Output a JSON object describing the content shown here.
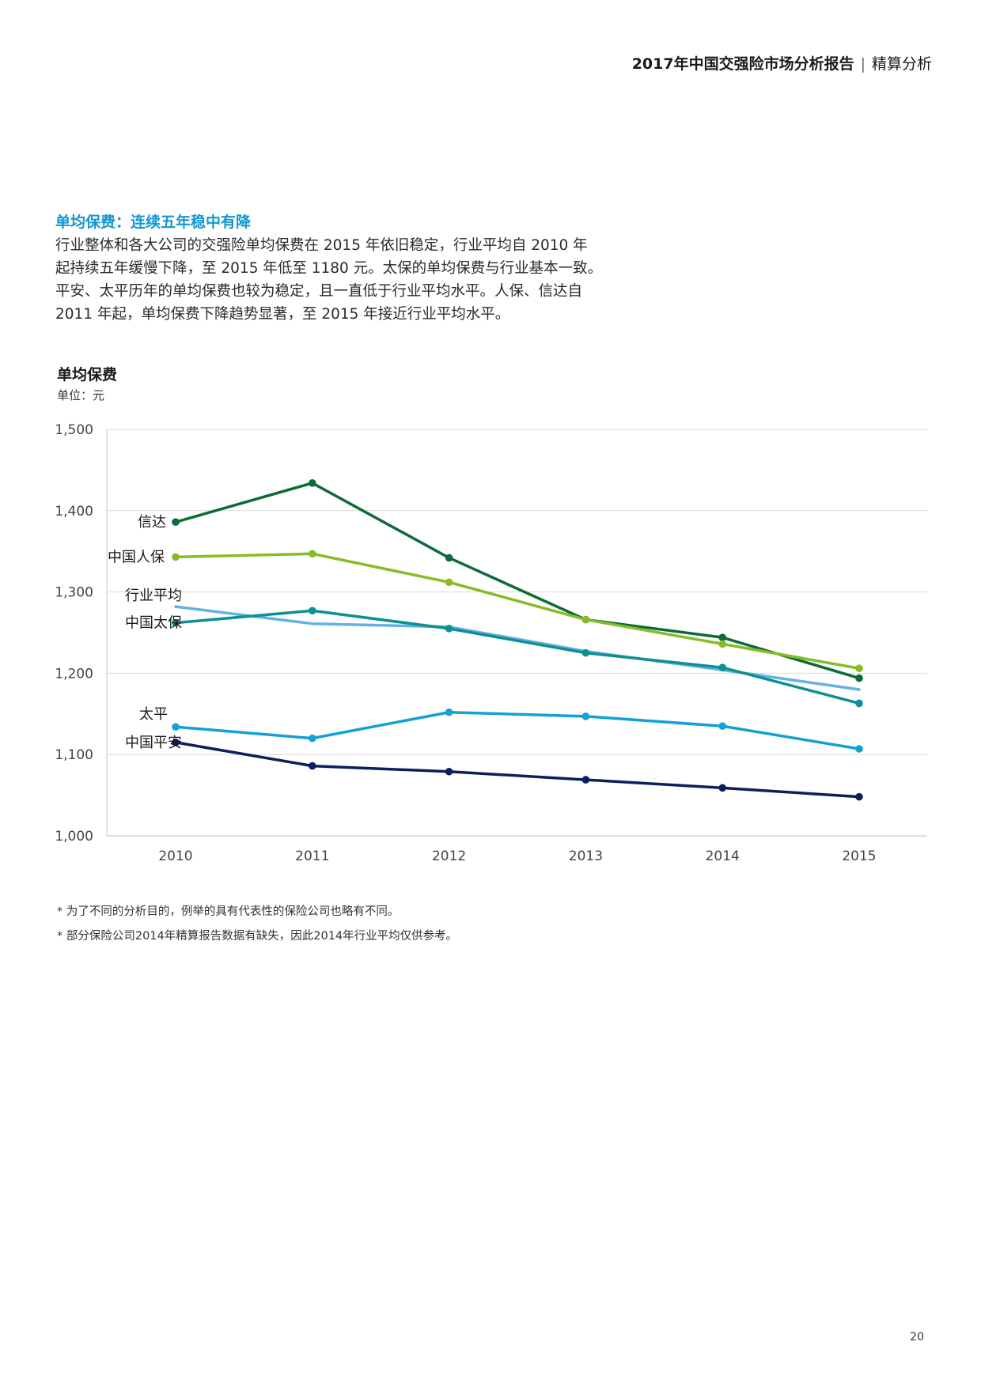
{
  "header": {
    "report_title": "2017年中国交强险市场分析报告",
    "separator": "|",
    "section": "精算分析"
  },
  "section": {
    "title": "单均保费：连续五年稳中有降",
    "paragraph_lines": [
      "行业整体和各大公司的交强险单均保费在 2015 年依旧稳定，行业平均自 2010 年",
      "起持续五年缓慢下降，至 2015 年低至 1180 元。太保的单均保费与行业基本一致。",
      "平安、太平历年的单均保费也较为稳定，且一直低于行业平均水平。人保、信达自",
      "2011 年起，单均保费下降趋势显著，至 2015 年接近行业平均水平。"
    ]
  },
  "chart_heading": {
    "title": "单均保费",
    "unit": "单位：元"
  },
  "chart_data": {
    "type": "line",
    "title": "单均保费",
    "ylabel": "单位：元",
    "xlabel": "",
    "categories": [
      "2010",
      "2011",
      "2012",
      "2013",
      "2014",
      "2015"
    ],
    "ylim": [
      1000,
      1500
    ],
    "y_ticks": [
      1000,
      1100,
      1200,
      1300,
      1400,
      1500
    ],
    "y_tick_labels": [
      "1,000",
      "1,100",
      "1,200",
      "1,300",
      "1,400",
      "1,500"
    ],
    "grid": true,
    "series": [
      {
        "name": "信达",
        "color": "#0d6b3a",
        "markers": true,
        "values": [
          1386,
          1434,
          1342,
          1266,
          1244,
          1194
        ]
      },
      {
        "name": "中国人保",
        "color": "#86bc25",
        "markers": true,
        "values": [
          1343,
          1347,
          1312,
          1266,
          1236,
          1206
        ]
      },
      {
        "name": "行业平均",
        "color": "#62b2e4",
        "markers": false,
        "values": [
          1282,
          1261,
          1257,
          1227,
          1204,
          1180
        ]
      },
      {
        "name": "中国太保",
        "color": "#0f8f94",
        "markers": true,
        "values": [
          1262,
          1277,
          1255,
          1225,
          1207,
          1163
        ]
      },
      {
        "name": "太平",
        "color": "#12a0d7",
        "markers": true,
        "values": [
          1134,
          1120,
          1152,
          1147,
          1135,
          1107
        ]
      },
      {
        "name": "中国平安",
        "color": "#0b1f5c",
        "markers": true,
        "values": [
          1115,
          1086,
          1079,
          1069,
          1059,
          1048
        ]
      }
    ]
  },
  "notes": [
    "* 为了不同的分析目的，例举的具有代表性的保险公司也略有不同。",
    "* 部分保险公司2014年精算报告数据有缺失，因此2014年行业平均仅供参考。"
  ],
  "page_number": "20"
}
